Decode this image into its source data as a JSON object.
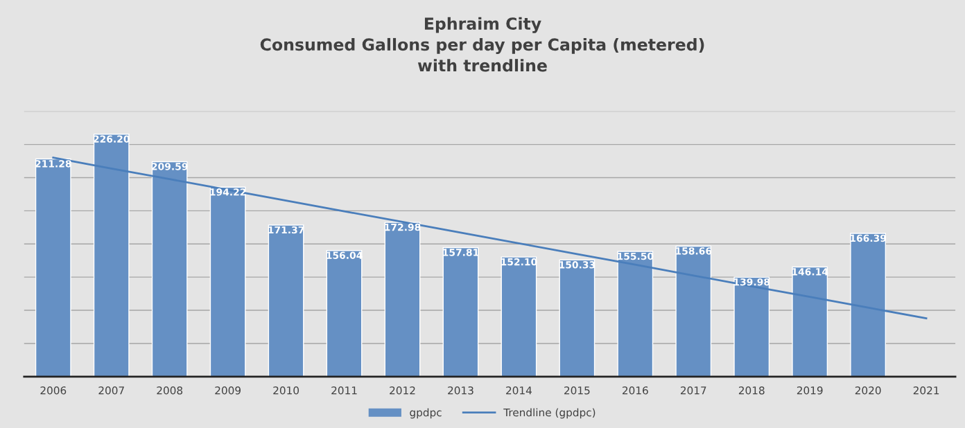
{
  "chart_data": {
    "type": "bar",
    "title": "Ephraim City\nConsumed Gallons per day per Capita (metered)\nwith trendline",
    "categories": [
      "2006",
      "2007",
      "2008",
      "2009",
      "2010",
      "2011",
      "2012",
      "2013",
      "2014",
      "2015",
      "2016",
      "2017",
      "2018",
      "2019",
      "2020",
      "2021"
    ],
    "series": [
      {
        "name": "gpdpc",
        "color": "#6590c4",
        "values": [
          211.28,
          226.2,
          209.59,
          194.22,
          171.37,
          156.04,
          172.98,
          157.81,
          152.1,
          150.33,
          155.5,
          158.66,
          139.98,
          146.14,
          166.39,
          null
        ],
        "value_labels": [
          "211.28",
          "226.20",
          "209.59",
          "194.22",
          "171.37",
          "156.04",
          "172.98",
          "157.81",
          "152.10",
          "150.33",
          "155.50",
          "158.66",
          "139.98",
          "146.14",
          "166.39",
          null
        ]
      },
      {
        "name": "Trendline (gpdpc)",
        "type": "line",
        "color": "#4a7ebb",
        "values": [
          212,
          205.5,
          199.1,
          192.6,
          186.2,
          179.7,
          173.3,
          166.8,
          160.4,
          153.9,
          147.5,
          141,
          134.5,
          128.1,
          121.6,
          115.2
        ]
      }
    ],
    "ylim": [
      80,
      240
    ],
    "yticks": [
      {
        "value": 80,
        "label": null
      },
      {
        "value": 100,
        "label": null
      },
      {
        "value": 120,
        "label": null
      },
      {
        "value": 140,
        "label": null
      },
      {
        "value": 160,
        "label": null
      },
      {
        "value": 180,
        "label": null
      },
      {
        "value": 200,
        "label": null
      },
      {
        "value": 220,
        "label": null
      },
      {
        "value": 240,
        "label": null
      }
    ],
    "tick_labels": "x",
    "grid": "y",
    "legend": "bottom"
  }
}
